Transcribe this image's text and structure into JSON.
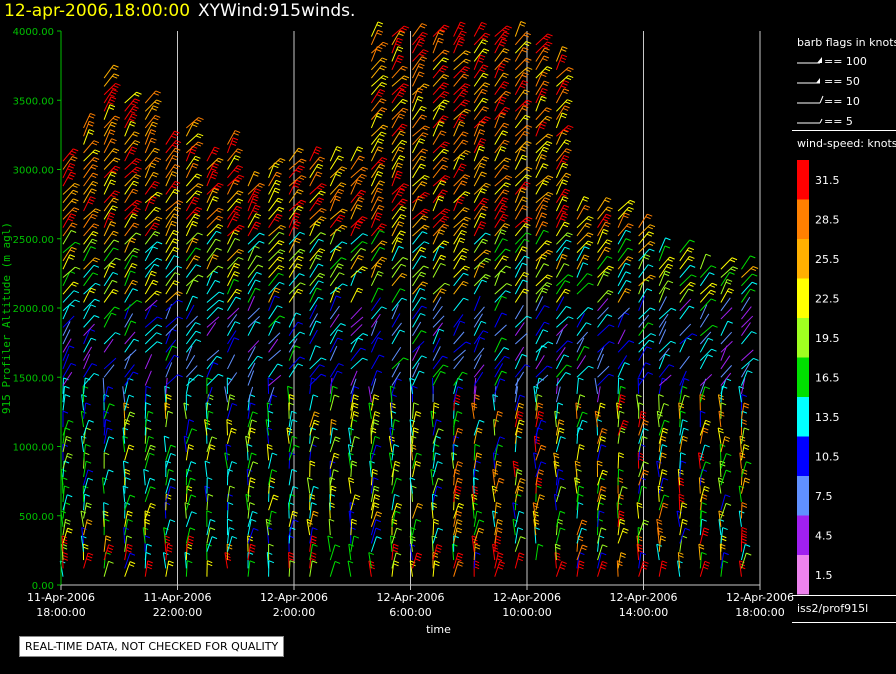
{
  "header": {
    "datetime": "12-apr-2006,18:00:00",
    "name": "XYWind:915winds."
  },
  "note": "REAL-TIME DATA, NOT CHECKED FOR QUALITY",
  "source": "iss2/prof915l",
  "legend": {
    "flags_title": "barb flags in knots",
    "flags": [
      "== 100",
      "== 50",
      "== 10",
      "== 5"
    ],
    "speed_title": "wind-speed: knots",
    "scale": [
      {
        "label": "31.5",
        "color": "#ff0000"
      },
      {
        "label": "28.5",
        "color": "#ff8000"
      },
      {
        "label": "25.5",
        "color": "#ffb000"
      },
      {
        "label": "22.5",
        "color": "#ffff00"
      },
      {
        "label": "19.5",
        "color": "#a0ff20"
      },
      {
        "label": "16.5",
        "color": "#00e000"
      },
      {
        "label": "13.5",
        "color": "#00ffff"
      },
      {
        "label": "10.5",
        "color": "#0000ff"
      },
      {
        "label": "7.5",
        "color": "#6090ff"
      },
      {
        "label": "4.5",
        "color": "#a020f0"
      },
      {
        "label": "1.5",
        "color": "#ee82ee"
      }
    ]
  },
  "chart_data": {
    "type": "scatter",
    "title": "XYWind:915winds.",
    "xlabel": "time",
    "ylabel": "915 Profiler Altitude (m agl)",
    "ylim": [
      0,
      4000
    ],
    "xlim": [
      "2006-04-11 18:00",
      "2006-04-12 18:00"
    ],
    "yticks": [
      "0.00",
      "500.00",
      "1000.00",
      "1500.00",
      "2000.00",
      "2500.00",
      "3000.00",
      "3500.00",
      "4000.00"
    ],
    "xticks": [
      [
        "11-Apr-2006",
        "18:00:00"
      ],
      [
        "11-Apr-2006",
        "22:00:00"
      ],
      [
        "12-Apr-2006",
        "2:00:00"
      ],
      [
        "12-Apr-2006",
        "6:00:00"
      ],
      [
        "12-Apr-2006",
        "10:00:00"
      ],
      [
        "12-Apr-2006",
        "14:00:00"
      ],
      [
        "12-Apr-2006",
        "18:00:00"
      ]
    ],
    "grid": true,
    "series": [
      {
        "speed_bins_knots": [
          1.5,
          4.5,
          7.5,
          10.5,
          13.5,
          16.5,
          19.5,
          22.5,
          25.5,
          28.5,
          31.5
        ],
        "profile_top_m": [
          3100,
          3300,
          3700,
          3500,
          3500,
          3200,
          3300,
          3100,
          3200,
          2900,
          3000,
          3100,
          3100,
          3100,
          3100,
          4000,
          4000,
          4000,
          4000,
          4000,
          4000,
          4000,
          4000,
          3900,
          3800,
          2700,
          2700,
          2700,
          2600,
          2400,
          2400,
          2300,
          2300,
          2300
        ]
      }
    ]
  }
}
